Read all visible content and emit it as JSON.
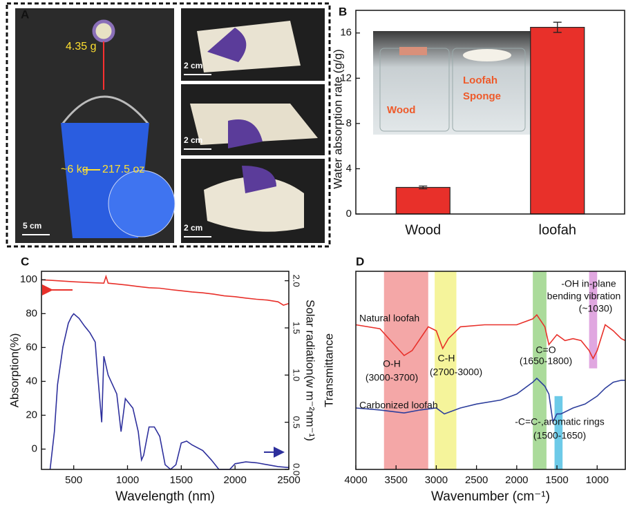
{
  "photo_panel": {
    "label": "A",
    "weight": "4.35 g",
    "load": "~6 kg",
    "load_oz": "217.5 oz",
    "scale_bars": [
      "5 cm",
      "2 cm",
      "2 cm",
      "2 cm"
    ]
  },
  "chart_data": [
    {
      "type": "bar",
      "panel_label": "B",
      "y_label": "Water absorption rate (g/g)",
      "categories": [
        "Wood",
        "loofah"
      ],
      "values": [
        2.35,
        16.5
      ],
      "errors": [
        0.12,
        0.45
      ],
      "color": "#e8302a",
      "ylim": [
        0,
        18
      ],
      "yticks": [
        0,
        4,
        8,
        12,
        16
      ],
      "inset_labels": [
        "Wood",
        "Loofah",
        "Sponge"
      ]
    },
    {
      "type": "line",
      "panel_label": "C",
      "x_label": "Wavelength (nm)",
      "y_label": "Absorption(%)",
      "y2_label": "Solar radiation(w m⁻²nm⁻¹)",
      "xlim": [
        200,
        2500
      ],
      "xticks": [
        500,
        1000,
        1500,
        2000,
        2500
      ],
      "ylim": [
        -12,
        105
      ],
      "yticks": [
        0,
        20,
        40,
        60,
        80,
        100
      ],
      "y2lim": [
        0,
        2.1
      ],
      "y2ticks": [
        {
          "value": 0,
          "label": "0.0"
        },
        0.5,
        {
          "value": 1,
          "label": "1.0"
        },
        1.5,
        {
          "value": 2,
          "label": "2.0"
        }
      ],
      "series": [
        {
          "color": "#e8302a",
          "x": [
            200,
            300,
            400,
            500,
            600,
            700,
            780,
            800,
            820,
            900,
            1000,
            1100,
            1200,
            1300,
            1400,
            1500,
            1600,
            1700,
            1800,
            1900,
            2000,
            2100,
            2200,
            2300,
            2400,
            2450,
            2500
          ],
          "values": [
            100,
            99.6,
            99.2,
            98.8,
            98.5,
            98.2,
            98,
            102,
            98,
            97.5,
            96.8,
            96,
            95.3,
            95,
            94.2,
            93.5,
            92.8,
            92.3,
            91.5,
            90.5,
            90,
            89.2,
            88.5,
            88,
            87,
            85,
            86
          ]
        },
        {
          "color": "#2d2f9c",
          "axis": "y2",
          "x": [
            280,
            320,
            350,
            400,
            450,
            480,
            500,
            550,
            600,
            650,
            700,
            720,
            760,
            780,
            820,
            900,
            940,
            980,
            1050,
            1100,
            1130,
            1150,
            1200,
            1250,
            1300,
            1350,
            1400,
            1450,
            1500,
            1550,
            1600,
            1700,
            1780,
            1850,
            1950,
            2000,
            2100,
            2200,
            2300,
            2400,
            2500
          ],
          "values": [
            0,
            0.4,
            0.9,
            1.3,
            1.55,
            1.62,
            1.65,
            1.6,
            1.52,
            1.45,
            1.35,
            1.05,
            0.5,
            1.2,
            1.0,
            0.8,
            0.4,
            0.75,
            0.65,
            0.4,
            0.1,
            0.15,
            0.45,
            0.45,
            0.35,
            0.05,
            0,
            0.05,
            0.28,
            0.3,
            0.26,
            0.2,
            0.1,
            0,
            0,
            0.06,
            0.08,
            0.07,
            0.05,
            0.03,
            0.02
          ]
        }
      ]
    },
    {
      "type": "line",
      "panel_label": "D",
      "x_label": "Wavenumber (cm⁻¹)",
      "y_label": "Transmittance",
      "xlim": [
        4000,
        650
      ],
      "xticks": [
        4000,
        3500,
        3000,
        2500,
        2000,
        1500,
        1000
      ],
      "ylim": [
        0,
        1
      ],
      "series": [
        {
          "name": "Natural loofah",
          "color": "#e8302a",
          "x": [
            4000,
            3700,
            3500,
            3400,
            3300,
            3100,
            3000,
            2920,
            2850,
            2700,
            2400,
            2000,
            1800,
            1750,
            1650,
            1600,
            1500,
            1400,
            1300,
            1200,
            1100,
            1050,
            1000,
            900,
            800,
            700,
            650
          ],
          "values": [
            0.73,
            0.71,
            0.62,
            0.575,
            0.6,
            0.72,
            0.7,
            0.61,
            0.66,
            0.72,
            0.73,
            0.73,
            0.76,
            0.78,
            0.72,
            0.63,
            0.68,
            0.65,
            0.66,
            0.65,
            0.6,
            0.56,
            0.6,
            0.73,
            0.7,
            0.66,
            0.65
          ]
        },
        {
          "name": "Carbonized loofah",
          "color": "#2d3e9c",
          "x": [
            4000,
            3700,
            3500,
            3400,
            3200,
            3000,
            2900,
            2700,
            2500,
            2200,
            2000,
            1800,
            1750,
            1650,
            1600,
            1550,
            1500,
            1450,
            1300,
            1150,
            1000,
            900,
            800,
            700,
            650
          ],
          "values": [
            0.31,
            0.3,
            0.29,
            0.285,
            0.3,
            0.31,
            0.28,
            0.31,
            0.33,
            0.35,
            0.38,
            0.44,
            0.46,
            0.42,
            0.38,
            0.24,
            0.28,
            0.28,
            0.31,
            0.33,
            0.37,
            0.41,
            0.44,
            0.45,
            0.45
          ]
        }
      ],
      "bands": [
        {
          "from": 3650,
          "to": 3100,
          "color": "#f08a8a",
          "ylim": [
            0,
            1
          ]
        },
        {
          "from": 3020,
          "to": 2750,
          "color": "#f2f07a",
          "ylim": [
            0,
            1
          ]
        },
        {
          "from": 1800,
          "to": 1630,
          "color": "#8fcf7a",
          "ylim": [
            0,
            1
          ]
        },
        {
          "from": 1530,
          "to": 1430,
          "color": "#3cb8e0",
          "ylim": [
            0,
            0.37
          ]
        },
        {
          "from": 1100,
          "to": 1000,
          "color": "#d58ad5",
          "ylim": [
            0.51,
            1
          ]
        }
      ],
      "annotations": [
        "Natural loofah",
        "O-H",
        "(3000-3700)",
        "C-H",
        "(2700-3000)",
        "C=O",
        "(1650-1800)",
        "-OH in-plane",
        "bending  vibration",
        "(~1030)",
        "Carbonized loofah",
        "-C=C-,aromatic rings",
        "(1500-1650)"
      ]
    }
  ]
}
